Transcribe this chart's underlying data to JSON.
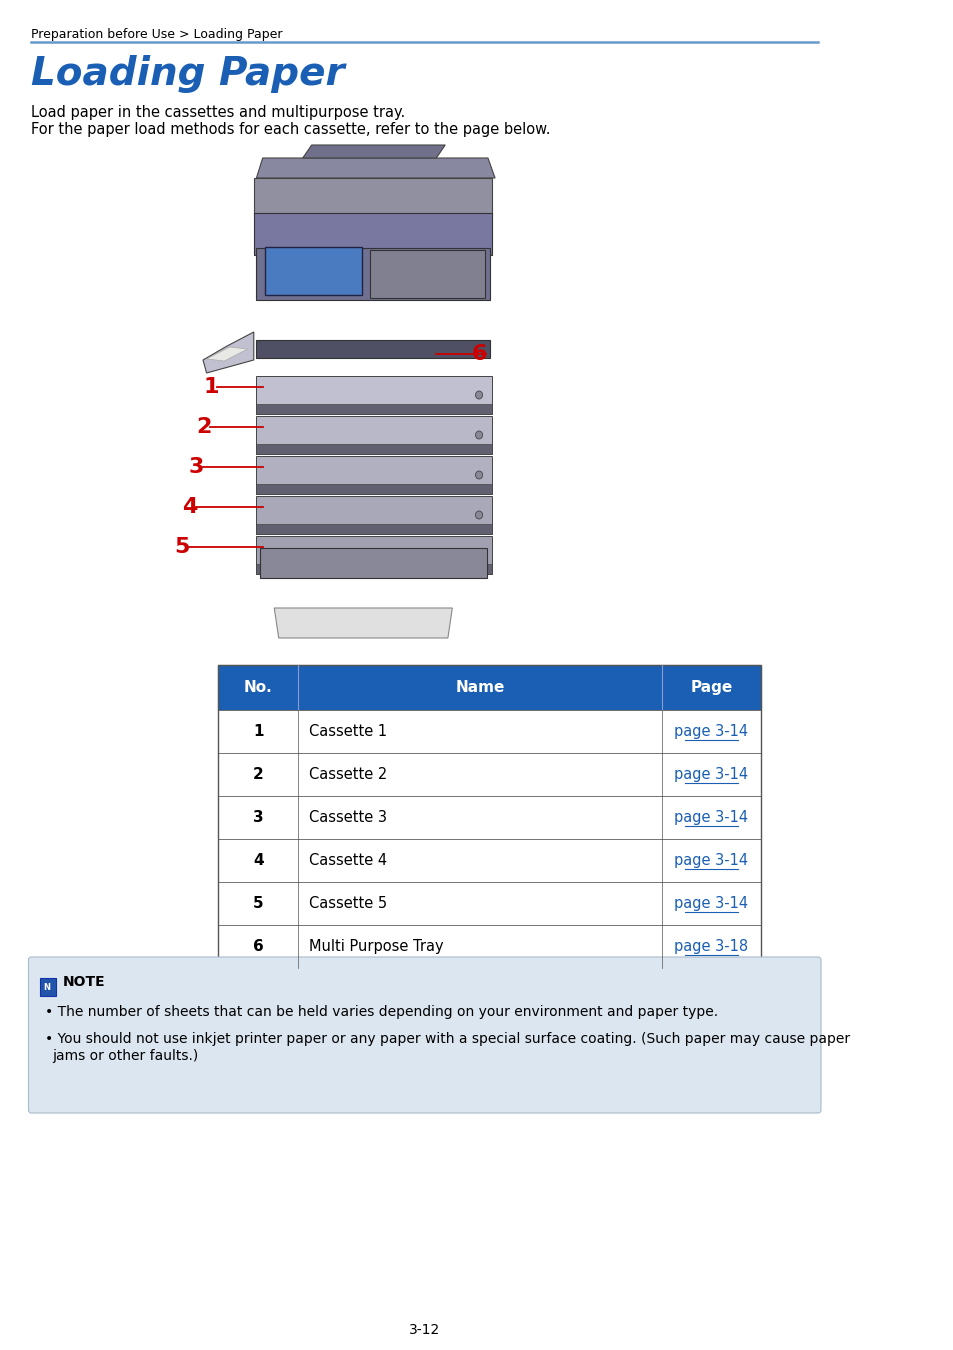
{
  "page_bg": "#ffffff",
  "breadcrumb": "Preparation before Use > Loading Paper",
  "breadcrumb_color": "#000000",
  "breadcrumb_fontsize": 9,
  "separator_color": "#6699cc",
  "title": "Loading Paper",
  "title_color": "#1a5fb4",
  "title_fontsize": 28,
  "body_text1": "Load paper in the cassettes and multipurpose tray.",
  "body_text2": "For the paper load methods for each cassette, refer to the page below.",
  "body_fontsize": 10.5,
  "body_color": "#000000",
  "label_color": "#cc0000",
  "label_fontsize": 16,
  "table_header_bg": "#1a5fb4",
  "table_header_color": "#ffffff",
  "table_row_bg": "#ffffff",
  "table_border_color": "#555555",
  "table_nos": [
    "1",
    "2",
    "3",
    "4",
    "5",
    "6"
  ],
  "table_names": [
    "Cassette 1",
    "Cassette 2",
    "Cassette 3",
    "Cassette 4",
    "Cassette 5",
    "Multi Purpose Tray"
  ],
  "table_pages": [
    "page 3-14",
    "page 3-14",
    "page 3-14",
    "page 3-14",
    "page 3-14",
    "page 3-18"
  ],
  "table_link_color": "#1a5fb4",
  "note_bg": "#dce6f1",
  "note_border_color": "#aabbcc",
  "note_title": "NOTE",
  "note_title_fontsize": 10,
  "note_bullet1": "The number of sheets that can be held varies depending on your environment and paper type.",
  "note_bullet2_line1": "You should not use inkjet printer paper or any paper with a special surface coating. (Such paper may cause paper",
  "note_bullet2_line2": "jams or other faults.)",
  "note_fontsize": 10,
  "footer_text": "3-12",
  "footer_fontsize": 10
}
